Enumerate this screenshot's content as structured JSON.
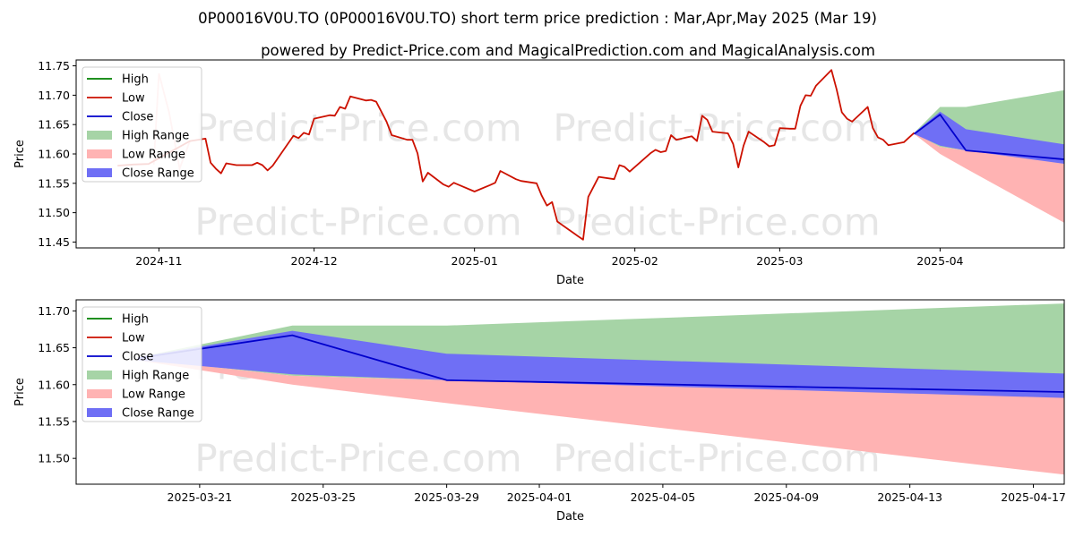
{
  "titles": {
    "main": "0P00016V0U.TO (0P00016V0U.TO) short term price prediction : Mar,Apr,May 2025 (Mar 19)",
    "sub": "powered by Predict-Price.com and MagicalPrediction.com and MagicalAnalysis.com"
  },
  "watermark": "Predict-Price.com",
  "colors": {
    "high": "#008000",
    "low": "#cc1100",
    "close": "#0000cc",
    "high_range": "#a6d4a6",
    "low_range": "#ffb3b3",
    "close_range": "#6f6ff5"
  },
  "legend": [
    "High",
    "Low",
    "Close",
    "High Range",
    "Low Range",
    "Close Range"
  ],
  "chart_data": [
    {
      "type": "line",
      "xlabel": "Date",
      "ylabel": "Price",
      "x_range": [
        "2024-10-16",
        "2025-04-25"
      ],
      "ylim": [
        11.44,
        11.76
      ],
      "x_ticks": [
        "2024-11",
        "2024-12",
        "2025-01",
        "2025-02",
        "2025-03",
        "2025-04"
      ],
      "y_ticks": [
        "11.45",
        "11.50",
        "11.55",
        "11.60",
        "11.65",
        "11.70",
        "11.75"
      ],
      "legend_position": "top-left",
      "low_series": [
        [
          "2024-10-24",
          11.58
        ],
        [
          "2024-10-27",
          11.582
        ],
        [
          "2024-10-30",
          11.583
        ],
        [
          "2024-11-07",
          11.622
        ],
        [
          "2024-11-10",
          11.626
        ],
        [
          "2024-11-11",
          11.585
        ],
        [
          "2024-11-12",
          11.575
        ],
        [
          "2024-11-13",
          11.567
        ],
        [
          "2024-11-14",
          11.584
        ],
        [
          "2024-11-16",
          11.581
        ],
        [
          "2024-11-18",
          11.581
        ],
        [
          "2024-11-19",
          11.581
        ],
        [
          "2024-11-20",
          11.585
        ],
        [
          "2024-11-21",
          11.581
        ],
        [
          "2024-11-22",
          11.572
        ],
        [
          "2024-11-23",
          11.58
        ],
        [
          "2024-11-27",
          11.631
        ],
        [
          "2024-11-28",
          11.627
        ],
        [
          "2024-11-29",
          11.636
        ],
        [
          "2024-11-30",
          11.633
        ],
        [
          "2024-12-01",
          11.66
        ],
        [
          "2024-12-04",
          11.666
        ],
        [
          "2024-12-05",
          11.665
        ],
        [
          "2024-12-06",
          11.68
        ],
        [
          "2024-12-07",
          11.677
        ],
        [
          "2024-12-08",
          11.698
        ],
        [
          "2024-12-11",
          11.691
        ],
        [
          "2024-12-12",
          11.692
        ],
        [
          "2024-12-13",
          11.689
        ],
        [
          "2024-12-15",
          11.655
        ],
        [
          "2024-12-16",
          11.632
        ],
        [
          "2024-12-19",
          11.624
        ],
        [
          "2024-12-20",
          11.624
        ],
        [
          "2024-12-21",
          11.601
        ],
        [
          "2024-12-22",
          11.553
        ],
        [
          "2024-12-23",
          11.568
        ],
        [
          "2024-12-26",
          11.548
        ],
        [
          "2024-12-27",
          11.544
        ],
        [
          "2024-12-28",
          11.551
        ],
        [
          "2025-01-01",
          11.536
        ],
        [
          "2025-01-04",
          11.547
        ],
        [
          "2025-01-05",
          11.551
        ],
        [
          "2025-01-06",
          11.571
        ],
        [
          "2025-01-09",
          11.557
        ],
        [
          "2025-01-10",
          11.554
        ],
        [
          "2025-01-13",
          11.55
        ],
        [
          "2025-01-14",
          11.529
        ],
        [
          "2025-01-15",
          11.512
        ],
        [
          "2025-01-16",
          11.518
        ],
        [
          "2025-01-17",
          11.485
        ],
        [
          "2025-01-21",
          11.46
        ],
        [
          "2025-01-22",
          11.454
        ],
        [
          "2025-01-23",
          11.527
        ],
        [
          "2025-01-25",
          11.561
        ],
        [
          "2025-01-28",
          11.557
        ],
        [
          "2025-01-29",
          11.581
        ],
        [
          "2025-01-30",
          11.578
        ],
        [
          "2025-01-31",
          11.57
        ],
        [
          "2025-02-04",
          11.601
        ],
        [
          "2025-02-05",
          11.607
        ],
        [
          "2025-02-06",
          11.603
        ],
        [
          "2025-02-07",
          11.605
        ],
        [
          "2025-02-08",
          11.632
        ],
        [
          "2025-02-09",
          11.624
        ],
        [
          "2025-02-12",
          11.63
        ],
        [
          "2025-02-13",
          11.622
        ],
        [
          "2025-02-14",
          11.665
        ],
        [
          "2025-02-15",
          11.658
        ],
        [
          "2025-02-16",
          11.638
        ],
        [
          "2025-02-19",
          11.635
        ],
        [
          "2025-02-20",
          11.617
        ],
        [
          "2025-02-21",
          11.577
        ],
        [
          "2025-02-22",
          11.614
        ],
        [
          "2025-02-23",
          11.638
        ],
        [
          "2025-02-26",
          11.62
        ],
        [
          "2025-02-27",
          11.613
        ],
        [
          "2025-02-28",
          11.615
        ],
        [
          "2025-03-01",
          11.644
        ],
        [
          "2025-03-03",
          11.643
        ],
        [
          "2025-03-04",
          11.643
        ],
        [
          "2025-03-05",
          11.682
        ],
        [
          "2025-03-06",
          11.7
        ],
        [
          "2025-03-07",
          11.699
        ],
        [
          "2025-03-08",
          11.716
        ],
        [
          "2025-03-11",
          11.743
        ],
        [
          "2025-03-12",
          11.71
        ],
        [
          "2025-03-13",
          11.671
        ],
        [
          "2025-03-14",
          11.66
        ],
        [
          "2025-03-15",
          11.655
        ],
        [
          "2025-03-18",
          11.68
        ],
        [
          "2025-03-19",
          11.644
        ],
        [
          "2025-03-20",
          11.628
        ],
        [
          "2025-03-21",
          11.624
        ],
        [
          "2025-03-22",
          11.615
        ],
        [
          "2025-03-25",
          11.62
        ],
        [
          "2025-03-26",
          11.628
        ],
        [
          "2025-03-27",
          11.636
        ]
      ],
      "low_spike": [
        [
          "2024-10-31",
          11.582
        ],
        [
          "2024-11-01",
          11.737
        ],
        [
          "2024-11-03",
          11.67
        ],
        [
          "2024-11-05",
          11.575
        ],
        [
          "2024-11-07",
          11.622
        ]
      ],
      "close_forecast": [
        [
          "2025-03-27",
          11.634
        ],
        [
          "2025-04-01",
          11.667
        ],
        [
          "2025-04-06",
          11.606
        ],
        [
          "2025-04-26",
          11.59
        ]
      ],
      "high_range": {
        "x": [
          "2025-03-27",
          "2025-04-01",
          "2025-04-06",
          "2025-04-26"
        ],
        "upper": [
          11.636,
          11.68,
          11.68,
          11.71
        ],
        "lower": [
          11.634,
          11.612,
          11.606,
          11.59
        ]
      },
      "low_range": {
        "x": [
          "2025-03-27",
          "2025-04-01",
          "2025-04-06",
          "2025-04-26"
        ],
        "upper": [
          11.636,
          11.612,
          11.606,
          11.59
        ],
        "lower": [
          11.634,
          11.6,
          11.575,
          11.478
        ]
      },
      "close_range": {
        "x": [
          "2025-03-27",
          "2025-04-01",
          "2025-04-06",
          "2025-04-26"
        ],
        "upper": [
          11.636,
          11.672,
          11.642,
          11.615
        ],
        "lower": [
          11.634,
          11.614,
          11.606,
          11.582
        ]
      }
    },
    {
      "type": "line",
      "xlabel": "Date",
      "ylabel": "Price",
      "x_range": [
        "2025-03-17",
        "2025-04-18"
      ],
      "ylim": [
        11.465,
        11.715
      ],
      "x_ticks": [
        "2025-03-21",
        "2025-03-25",
        "2025-03-29",
        "2025-04-01",
        "2025-04-05",
        "2025-04-09",
        "2025-04-13",
        "2025-04-17"
      ],
      "y_ticks": [
        "11.50",
        "11.55",
        "11.60",
        "11.65",
        "11.70"
      ],
      "legend_position": "top-left",
      "close_forecast": [
        [
          "2025-03-19",
          11.636
        ],
        [
          "2025-03-24",
          11.667
        ],
        [
          "2025-03-29",
          11.606
        ],
        [
          "2025-04-18",
          11.59
        ]
      ],
      "high_range": {
        "x": [
          "2025-03-19",
          "2025-03-24",
          "2025-03-29",
          "2025-04-18"
        ],
        "upper": [
          11.637,
          11.68,
          11.68,
          11.71
        ],
        "lower": [
          11.635,
          11.612,
          11.606,
          11.59
        ]
      },
      "low_range": {
        "x": [
          "2025-03-19",
          "2025-03-24",
          "2025-03-29",
          "2025-04-18"
        ],
        "upper": [
          11.635,
          11.612,
          11.606,
          11.59
        ],
        "lower": [
          11.633,
          11.6,
          11.575,
          11.478
        ]
      },
      "close_range": {
        "x": [
          "2025-03-19",
          "2025-03-24",
          "2025-03-29",
          "2025-04-18"
        ],
        "upper": [
          11.637,
          11.673,
          11.642,
          11.615
        ],
        "lower": [
          11.633,
          11.614,
          11.606,
          11.582
        ]
      }
    }
  ]
}
